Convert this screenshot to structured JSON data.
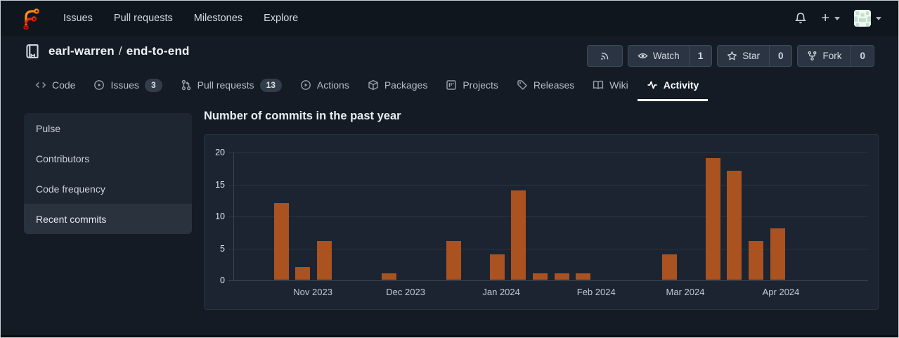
{
  "navbar": {
    "links": [
      {
        "label": "Issues"
      },
      {
        "label": "Pull requests"
      },
      {
        "label": "Milestones"
      },
      {
        "label": "Explore"
      }
    ],
    "create_label": "+"
  },
  "repo_header": {
    "owner": "earl-warren",
    "separator": "/",
    "name": "end-to-end",
    "actions": [
      {
        "name": "rss"
      },
      {
        "name": "watch",
        "label": "Watch",
        "count": "1"
      },
      {
        "name": "star",
        "label": "Star",
        "count": "0"
      },
      {
        "name": "fork",
        "label": "Fork",
        "count": "0"
      }
    ]
  },
  "tabs": [
    {
      "label": "Code"
    },
    {
      "label": "Issues",
      "badge": "3"
    },
    {
      "label": "Pull requests",
      "badge": "13"
    },
    {
      "label": "Actions"
    },
    {
      "label": "Packages"
    },
    {
      "label": "Projects"
    },
    {
      "label": "Releases"
    },
    {
      "label": "Wiki"
    },
    {
      "label": "Activity",
      "active": true
    }
  ],
  "sidebar": {
    "items": [
      {
        "label": "Pulse"
      },
      {
        "label": "Contributors"
      },
      {
        "label": "Code frequency"
      },
      {
        "label": "Recent commits",
        "active": true
      }
    ]
  },
  "chart_data": {
    "type": "bar",
    "title": "Number of commits in the past year",
    "xlabel": "",
    "ylabel": "",
    "ylim": [
      0,
      20
    ],
    "yticks": [
      0,
      5,
      10,
      15,
      20
    ],
    "grid": true,
    "bar_color": "#ab5221",
    "x_unit": "week",
    "bars": [
      {
        "week": 0,
        "count": 12
      },
      {
        "week": 1,
        "count": 2
      },
      {
        "week": 2,
        "count": 6
      },
      {
        "week": 5,
        "count": 1
      },
      {
        "week": 8,
        "count": 6
      },
      {
        "week": 10,
        "count": 4
      },
      {
        "week": 11,
        "count": 14
      },
      {
        "week": 12,
        "count": 1
      },
      {
        "week": 13,
        "count": 1
      },
      {
        "week": 14,
        "count": 1
      },
      {
        "week": 18,
        "count": 4
      },
      {
        "week": 20,
        "count": 19
      },
      {
        "week": 21,
        "count": 17
      },
      {
        "week": 22,
        "count": 6
      },
      {
        "week": 23,
        "count": 8
      }
    ],
    "month_ticks": [
      {
        "week": 1.47,
        "label": "Nov 2023"
      },
      {
        "week": 5.77,
        "label": "Dec 2023"
      },
      {
        "week": 10.2,
        "label": "Jan 2024"
      },
      {
        "week": 14.6,
        "label": "Feb 2024"
      },
      {
        "week": 18.73,
        "label": "Mar 2024"
      },
      {
        "week": 23.16,
        "label": "Apr 2024"
      }
    ]
  }
}
